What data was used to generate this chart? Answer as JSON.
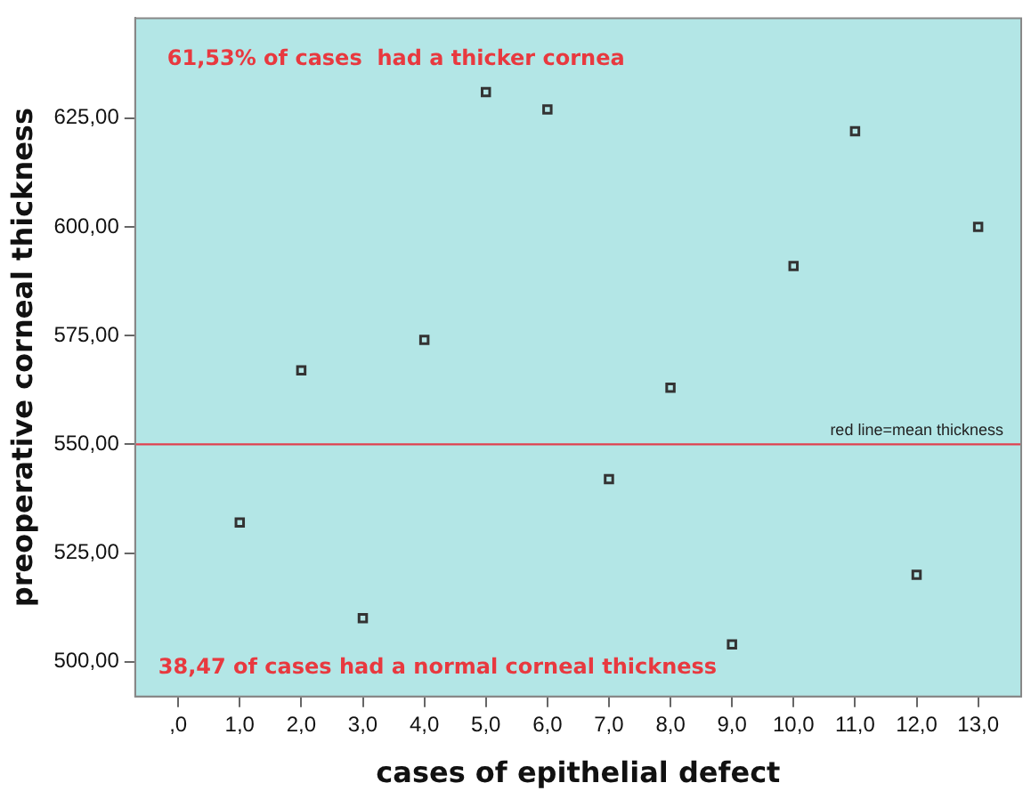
{
  "chart_data": {
    "type": "scatter",
    "xlabel": "cases of epithelial defect",
    "ylabel": "preoperative corneal thickness",
    "annotations": [
      "61,53% of cases  had a thicker cornea",
      "38,47 of cases had a normal corneal thickness"
    ],
    "x": [
      1,
      2,
      3,
      4,
      5,
      6,
      7,
      8,
      9,
      10,
      11,
      12,
      13
    ],
    "series": [
      {
        "color": "#333333",
        "values": [
          532,
          567,
          510,
          574,
          631,
          627,
          542,
          563,
          504,
          591,
          622,
          520,
          600
        ]
      }
    ],
    "xlim": [
      -0.7,
      13.7
    ],
    "xticks": [
      {
        "value": 0,
        "label": ",0"
      },
      {
        "value": 1,
        "label": "1,0"
      },
      {
        "value": 2,
        "label": "2,0"
      },
      {
        "value": 3,
        "label": "3,0"
      },
      {
        "value": 4,
        "label": "4,0"
      },
      {
        "value": 5,
        "label": "5,0"
      },
      {
        "value": 6,
        "label": "6,0"
      },
      {
        "value": 7,
        "label": "7,0"
      },
      {
        "value": 8,
        "label": "8,0"
      },
      {
        "value": 9,
        "label": "9,0"
      },
      {
        "value": 10,
        "label": "10,0"
      },
      {
        "value": 11,
        "label": "11,0"
      },
      {
        "value": 12,
        "label": "12,0"
      },
      {
        "value": 13,
        "label": "13,0"
      }
    ],
    "ylim": [
      492,
      648
    ],
    "yticks": [
      {
        "value": 500,
        "label": "500,00"
      },
      {
        "value": 525,
        "label": "525,00"
      },
      {
        "value": 550,
        "label": "550,00"
      },
      {
        "value": 575,
        "label": "575,00"
      },
      {
        "value": 600,
        "label": "600,00"
      },
      {
        "value": 625,
        "label": "625,00"
      }
    ],
    "ref_lines": [
      {
        "axis": "y",
        "value": 550,
        "label": "red line=mean thickness",
        "color": "#e0404f"
      }
    ],
    "marker": "square",
    "grid": false,
    "legend": false
  }
}
